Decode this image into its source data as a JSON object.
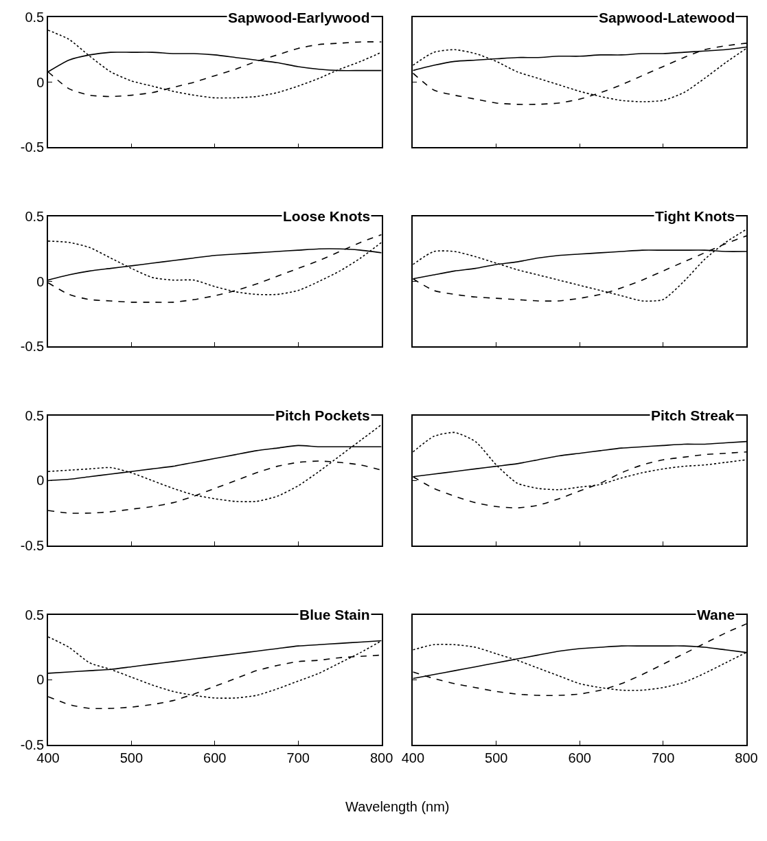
{
  "chart_data": [
    {
      "type": "line",
      "title": "Sapwood-Earlywood",
      "x": [
        400,
        425,
        450,
        475,
        500,
        525,
        550,
        575,
        600,
        625,
        650,
        675,
        700,
        725,
        750,
        775,
        800
      ],
      "xlim": [
        400,
        800
      ],
      "ylim": [
        -0.5,
        0.5
      ],
      "xticks": [
        400,
        500,
        600,
        700,
        800
      ],
      "yticks": [
        -0.5,
        0,
        0.5
      ],
      "tick_labels": "y",
      "series": [
        {
          "color": "#000000",
          "line_style": "solid",
          "values": [
            0.08,
            0.17,
            0.21,
            0.23,
            0.23,
            0.23,
            0.22,
            0.22,
            0.21,
            0.19,
            0.17,
            0.15,
            0.12,
            0.1,
            0.09,
            0.09,
            0.09
          ]
        },
        {
          "color": "#000000",
          "line_style": "dashed",
          "values": [
            0.08,
            -0.05,
            -0.1,
            -0.11,
            -0.1,
            -0.08,
            -0.04,
            0.0,
            0.05,
            0.1,
            0.16,
            0.21,
            0.26,
            0.29,
            0.3,
            0.31,
            0.31
          ]
        },
        {
          "color": "#000000",
          "line_style": "dotted",
          "values": [
            0.4,
            0.33,
            0.2,
            0.08,
            0.01,
            -0.03,
            -0.07,
            -0.1,
            -0.12,
            -0.12,
            -0.11,
            -0.08,
            -0.03,
            0.03,
            0.1,
            0.16,
            0.23
          ]
        }
      ]
    },
    {
      "type": "line",
      "title": "Sapwood-Latewood",
      "x": [
        400,
        425,
        450,
        475,
        500,
        525,
        550,
        575,
        600,
        625,
        650,
        675,
        700,
        725,
        750,
        775,
        800
      ],
      "xlim": [
        400,
        800
      ],
      "ylim": [
        -0.5,
        0.5
      ],
      "xticks": [
        400,
        500,
        600,
        700,
        800
      ],
      "yticks": [
        -0.5,
        0,
        0.5
      ],
      "tick_labels": false,
      "series": [
        {
          "color": "#000000",
          "line_style": "solid",
          "values": [
            0.09,
            0.13,
            0.16,
            0.17,
            0.18,
            0.19,
            0.19,
            0.2,
            0.2,
            0.21,
            0.21,
            0.22,
            0.22,
            0.23,
            0.24,
            0.25,
            0.27
          ]
        },
        {
          "color": "#000000",
          "line_style": "dashed",
          "values": [
            0.07,
            -0.06,
            -0.1,
            -0.13,
            -0.16,
            -0.17,
            -0.17,
            -0.16,
            -0.13,
            -0.08,
            -0.02,
            0.05,
            0.12,
            0.19,
            0.25,
            0.28,
            0.3
          ]
        },
        {
          "color": "#000000",
          "line_style": "dotted",
          "values": [
            0.13,
            0.23,
            0.25,
            0.22,
            0.16,
            0.08,
            0.03,
            -0.02,
            -0.07,
            -0.11,
            -0.14,
            -0.15,
            -0.14,
            -0.08,
            0.03,
            0.15,
            0.26
          ]
        }
      ]
    },
    {
      "type": "line",
      "title": "Loose Knots",
      "x": [
        400,
        425,
        450,
        475,
        500,
        525,
        550,
        575,
        600,
        625,
        650,
        675,
        700,
        725,
        750,
        775,
        800
      ],
      "xlim": [
        400,
        800
      ],
      "ylim": [
        -0.5,
        0.5
      ],
      "xticks": [
        400,
        500,
        600,
        700,
        800
      ],
      "yticks": [
        -0.5,
        0,
        0.5
      ],
      "tick_labels": "y",
      "series": [
        {
          "color": "#000000",
          "line_style": "solid",
          "values": [
            0.01,
            0.05,
            0.08,
            0.1,
            0.12,
            0.14,
            0.16,
            0.18,
            0.2,
            0.21,
            0.22,
            0.23,
            0.24,
            0.25,
            0.25,
            0.24,
            0.22
          ]
        },
        {
          "color": "#000000",
          "line_style": "dashed",
          "values": [
            -0.01,
            -0.1,
            -0.14,
            -0.15,
            -0.16,
            -0.16,
            -0.16,
            -0.14,
            -0.11,
            -0.07,
            -0.02,
            0.04,
            0.1,
            0.16,
            0.23,
            0.3,
            0.36
          ]
        },
        {
          "color": "#000000",
          "line_style": "dotted",
          "values": [
            0.31,
            0.3,
            0.26,
            0.18,
            0.1,
            0.03,
            0.01,
            0.01,
            -0.04,
            -0.08,
            -0.1,
            -0.1,
            -0.07,
            0.0,
            0.08,
            0.18,
            0.3
          ]
        }
      ]
    },
    {
      "type": "line",
      "title": "Tight Knots",
      "x": [
        400,
        425,
        450,
        475,
        500,
        525,
        550,
        575,
        600,
        625,
        650,
        675,
        700,
        725,
        750,
        775,
        800
      ],
      "xlim": [
        400,
        800
      ],
      "ylim": [
        -0.5,
        0.5
      ],
      "xticks": [
        400,
        500,
        600,
        700,
        800
      ],
      "yticks": [
        -0.5,
        0,
        0.5
      ],
      "tick_labels": false,
      "series": [
        {
          "color": "#000000",
          "line_style": "solid",
          "values": [
            0.02,
            0.05,
            0.08,
            0.1,
            0.13,
            0.15,
            0.18,
            0.2,
            0.21,
            0.22,
            0.23,
            0.24,
            0.24,
            0.24,
            0.24,
            0.23,
            0.23
          ]
        },
        {
          "color": "#000000",
          "line_style": "dashed",
          "values": [
            0.02,
            -0.07,
            -0.1,
            -0.12,
            -0.13,
            -0.14,
            -0.15,
            -0.15,
            -0.13,
            -0.1,
            -0.05,
            0.01,
            0.08,
            0.15,
            0.22,
            0.29,
            0.35
          ]
        },
        {
          "color": "#000000",
          "line_style": "dotted",
          "values": [
            0.13,
            0.23,
            0.23,
            0.19,
            0.14,
            0.09,
            0.05,
            0.01,
            -0.03,
            -0.07,
            -0.11,
            -0.15,
            -0.14,
            0.0,
            0.17,
            0.3,
            0.4
          ]
        }
      ]
    },
    {
      "type": "line",
      "title": "Pitch Pockets",
      "x": [
        400,
        425,
        450,
        475,
        500,
        525,
        550,
        575,
        600,
        625,
        650,
        675,
        700,
        725,
        750,
        775,
        800
      ],
      "xlim": [
        400,
        800
      ],
      "ylim": [
        -0.5,
        0.5
      ],
      "xticks": [
        400,
        500,
        600,
        700,
        800
      ],
      "yticks": [
        -0.5,
        0,
        0.5
      ],
      "tick_labels": "y",
      "series": [
        {
          "color": "#000000",
          "line_style": "solid",
          "values": [
            0.0,
            0.01,
            0.03,
            0.05,
            0.07,
            0.09,
            0.11,
            0.14,
            0.17,
            0.2,
            0.23,
            0.25,
            0.27,
            0.26,
            0.26,
            0.26,
            0.26
          ]
        },
        {
          "color": "#000000",
          "line_style": "dashed",
          "values": [
            -0.23,
            -0.25,
            -0.25,
            -0.24,
            -0.22,
            -0.2,
            -0.17,
            -0.12,
            -0.06,
            0.0,
            0.06,
            0.11,
            0.14,
            0.15,
            0.14,
            0.12,
            0.08
          ]
        },
        {
          "color": "#000000",
          "line_style": "dotted",
          "values": [
            0.07,
            0.08,
            0.09,
            0.1,
            0.06,
            0.0,
            -0.06,
            -0.11,
            -0.14,
            -0.16,
            -0.16,
            -0.12,
            -0.04,
            0.07,
            0.19,
            0.31,
            0.43
          ]
        }
      ]
    },
    {
      "type": "line",
      "title": "Pitch Streak",
      "x": [
        400,
        425,
        450,
        475,
        500,
        525,
        550,
        575,
        600,
        625,
        650,
        675,
        700,
        725,
        750,
        775,
        800
      ],
      "xlim": [
        400,
        800
      ],
      "ylim": [
        -0.5,
        0.5
      ],
      "xticks": [
        400,
        500,
        600,
        700,
        800
      ],
      "yticks": [
        -0.5,
        0,
        0.5
      ],
      "tick_labels": false,
      "series": [
        {
          "color": "#000000",
          "line_style": "solid",
          "values": [
            0.03,
            0.05,
            0.07,
            0.09,
            0.11,
            0.13,
            0.16,
            0.19,
            0.21,
            0.23,
            0.25,
            0.26,
            0.27,
            0.28,
            0.28,
            0.29,
            0.3
          ]
        },
        {
          "color": "#000000",
          "line_style": "dashed",
          "values": [
            0.03,
            -0.06,
            -0.12,
            -0.17,
            -0.2,
            -0.21,
            -0.19,
            -0.14,
            -0.08,
            -0.02,
            0.06,
            0.12,
            0.16,
            0.18,
            0.2,
            0.21,
            0.22
          ]
        },
        {
          "color": "#000000",
          "line_style": "dotted",
          "values": [
            0.22,
            0.34,
            0.37,
            0.3,
            0.12,
            -0.02,
            -0.06,
            -0.07,
            -0.05,
            -0.03,
            0.02,
            0.06,
            0.09,
            0.11,
            0.12,
            0.14,
            0.16
          ]
        }
      ]
    },
    {
      "type": "line",
      "title": "Blue Stain",
      "xlabel": "Wavelength (nm)",
      "x": [
        400,
        425,
        450,
        475,
        500,
        525,
        550,
        575,
        600,
        625,
        650,
        675,
        700,
        725,
        750,
        775,
        800
      ],
      "xlim": [
        400,
        800
      ],
      "ylim": [
        -0.5,
        0.5
      ],
      "xticks": [
        400,
        500,
        600,
        700,
        800
      ],
      "yticks": [
        -0.5,
        0,
        0.5
      ],
      "series": [
        {
          "color": "#000000",
          "line_style": "solid",
          "values": [
            0.05,
            0.06,
            0.07,
            0.08,
            0.1,
            0.12,
            0.14,
            0.16,
            0.18,
            0.2,
            0.22,
            0.24,
            0.26,
            0.27,
            0.28,
            0.29,
            0.3
          ]
        },
        {
          "color": "#000000",
          "line_style": "dashed",
          "values": [
            -0.13,
            -0.19,
            -0.22,
            -0.22,
            -0.21,
            -0.19,
            -0.16,
            -0.11,
            -0.05,
            0.01,
            0.07,
            0.11,
            0.14,
            0.15,
            0.17,
            0.18,
            0.19
          ]
        },
        {
          "color": "#000000",
          "line_style": "dotted",
          "values": [
            0.33,
            0.25,
            0.13,
            0.08,
            0.02,
            -0.04,
            -0.09,
            -0.12,
            -0.14,
            -0.14,
            -0.12,
            -0.07,
            -0.01,
            0.05,
            0.13,
            0.21,
            0.3
          ]
        }
      ]
    },
    {
      "type": "line",
      "title": "Wane",
      "x": [
        400,
        425,
        450,
        475,
        500,
        525,
        550,
        575,
        600,
        625,
        650,
        675,
        700,
        725,
        750,
        775,
        800
      ],
      "xlim": [
        400,
        800
      ],
      "ylim": [
        -0.5,
        0.5
      ],
      "xticks": [
        400,
        500,
        600,
        700,
        800
      ],
      "yticks": [
        -0.5,
        0,
        0.5
      ],
      "tick_labels": "x",
      "series": [
        {
          "color": "#000000",
          "line_style": "solid",
          "values": [
            0.01,
            0.04,
            0.07,
            0.1,
            0.13,
            0.16,
            0.19,
            0.22,
            0.24,
            0.25,
            0.26,
            0.26,
            0.26,
            0.26,
            0.25,
            0.23,
            0.21
          ]
        },
        {
          "color": "#000000",
          "line_style": "dashed",
          "values": [
            0.06,
            0.01,
            -0.03,
            -0.06,
            -0.09,
            -0.11,
            -0.12,
            -0.12,
            -0.11,
            -0.08,
            -0.03,
            0.04,
            0.12,
            0.2,
            0.28,
            0.36,
            0.43
          ]
        },
        {
          "color": "#000000",
          "line_style": "dotted",
          "values": [
            0.23,
            0.27,
            0.27,
            0.25,
            0.2,
            0.15,
            0.09,
            0.03,
            -0.03,
            -0.06,
            -0.08,
            -0.08,
            -0.06,
            -0.02,
            0.05,
            0.13,
            0.21
          ]
        }
      ]
    }
  ]
}
